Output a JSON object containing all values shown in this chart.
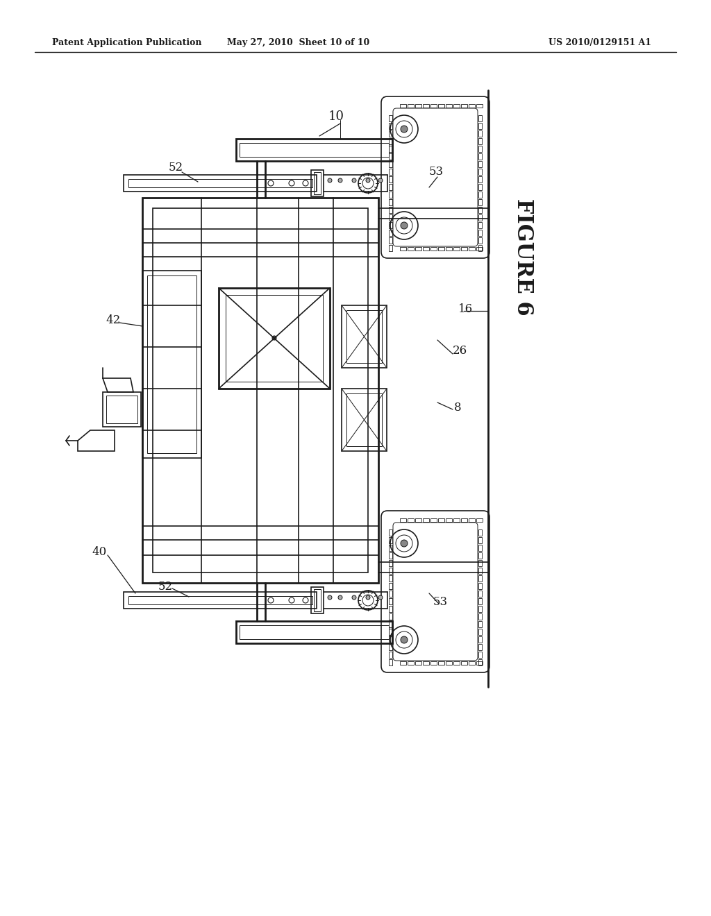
{
  "bg_color": "#ffffff",
  "line_color": "#1a1a1a",
  "header_left": "Patent Application Publication",
  "header_center": "May 27, 2010  Sheet 10 of 10",
  "header_right": "US 2010/0129151 A1",
  "figure_label": "FIGURE 6"
}
